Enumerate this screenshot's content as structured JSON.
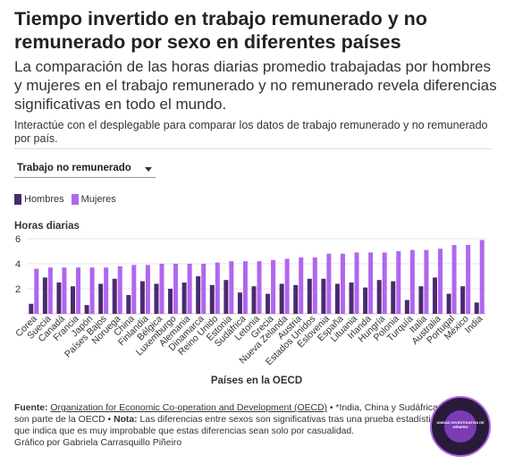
{
  "header": {
    "title": "Tiempo invertido en trabajo remunerado y no remunerado por sexo en diferentes países",
    "subtitle": "La comparación de las horas diarias promedio trabajadas por hombres y mujeres en el trabajo remunerado y no remunerado revela diferencias significativas en todo el mundo.",
    "instructions": "Interactúe con el desplegable para comparar los datos de trabajo remunerado y no remunerado por país."
  },
  "dropdown": {
    "selected": "Trabajo no remunerado"
  },
  "colors": {
    "hombres": "#4b2a70",
    "mujeres": "#b066ee",
    "grid": "#e4e4e4"
  },
  "chart_data": {
    "type": "bar",
    "ylabel": "Horas diarias",
    "xlabel": "Países en la OECD",
    "ylim": [
      0,
      6
    ],
    "yticks": [
      2,
      4,
      6
    ],
    "grid": true,
    "legend": "top-left",
    "categories": [
      "Corea",
      "Suecia",
      "Canadá",
      "Francia",
      "Japón",
      "Países Bajos",
      "Noruega",
      "China",
      "Finlandia",
      "Bélgica",
      "Luxemburgo",
      "Alemania",
      "Dinamarca",
      "Reino Unido",
      "Estonia",
      "Sudáfrica",
      "Letonia",
      "Grecia",
      "Nueva Zelanda",
      "Austria",
      "Estados Unidos",
      "Eslovenia",
      "España",
      "Lituania",
      "Irlanda",
      "Hungría",
      "Polonia",
      "Turquía",
      "Italia",
      "Australia",
      "Portugal",
      "México",
      "India"
    ],
    "series": [
      {
        "name": "Hombres",
        "values": [
          0.8,
          2.9,
          2.5,
          2.2,
          0.7,
          2.4,
          2.8,
          1.5,
          2.6,
          2.4,
          2.0,
          2.5,
          3.0,
          2.3,
          2.7,
          1.7,
          2.2,
          1.6,
          2.4,
          2.3,
          2.8,
          2.8,
          2.4,
          2.5,
          2.1,
          2.7,
          2.6,
          1.1,
          2.2,
          2.9,
          1.6,
          2.2,
          0.9
        ]
      },
      {
        "name": "Mujeres",
        "values": [
          3.6,
          3.7,
          3.7,
          3.7,
          3.7,
          3.7,
          3.8,
          3.9,
          3.9,
          4.0,
          4.0,
          4.0,
          4.0,
          4.1,
          4.2,
          4.2,
          4.2,
          4.3,
          4.4,
          4.5,
          4.5,
          4.8,
          4.8,
          4.9,
          4.9,
          4.9,
          5.0,
          5.1,
          5.1,
          5.2,
          5.5,
          5.5,
          5.9
        ]
      }
    ]
  },
  "footer": {
    "source_label": "Fuente:",
    "source_link": "Organization for Economic Co-operation and Development (OECD)",
    "source_rest": " • *India, China y Sudáfrica no son parte de la OECD • ",
    "note_label": "Nota:",
    "note_text": " Las diferencias entre sexos son significativas tras una prueba estadística que indica que es muy improbable que estas diferencias sean solo por casualidad.",
    "credit": "Gráfico por Gabriela Carrasquillo Piñeiro"
  },
  "badge": {
    "ring_text": "CENTRO DE PERIODISMO INVESTIGATIVO",
    "center_text": "UNIDAD INVESTIGATIVA DE GÉNERO",
    "bottom_text": "TODXS"
  }
}
